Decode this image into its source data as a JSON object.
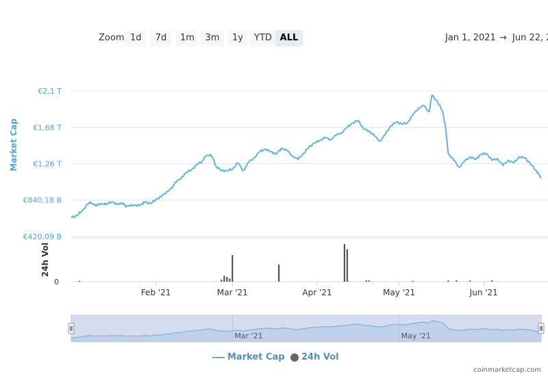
{
  "zoom": {
    "label": "Zoom",
    "buttons": [
      "1d",
      "7d",
      "1m",
      "3m",
      "1y",
      "YTD",
      "ALL"
    ],
    "active": "ALL"
  },
  "date_range": {
    "from": "Jan 1, 2021",
    "arrow": "→",
    "to": "Jun 22, 2"
  },
  "legend": {
    "market_cap": "Market Cap",
    "vol": "24h Vol"
  },
  "credit": "coinmarketcap.com",
  "colors": {
    "market_cap": "#5eb4e6",
    "volume": "#434348",
    "axis_label": "#4aa8de",
    "navigator_fill": "#ccd6eb"
  },
  "chart_data": [
    {
      "type": "line",
      "title": "",
      "ylabel": "Market Cap",
      "y_tick_labels": [
        "€420,09 B",
        "€840,18 B",
        "€1,26 T",
        "€1,68 T",
        "€2,1 T"
      ],
      "y_tick_values": [
        420.09,
        840.18,
        1260,
        1680,
        2100
      ],
      "ylim": [
        420.09,
        2310
      ],
      "x_tick_labels": [
        "Feb '21",
        "Mar '21",
        "Apr '21",
        "May '21",
        "Jun '21"
      ],
      "x_tick_dates": [
        "2021-02-01",
        "2021-03-01",
        "2021-04-01",
        "2021-05-01",
        "2021-06-01"
      ],
      "xlim": [
        "2021-01-01",
        "2021-06-22"
      ],
      "grid": true,
      "series": [
        {
          "name": "Market Cap",
          "unit": "€ billions",
          "x": [
            "2021-01-01",
            "2021-01-03",
            "2021-01-05",
            "2021-01-07",
            "2021-01-08",
            "2021-01-10",
            "2021-01-11",
            "2021-01-13",
            "2021-01-14",
            "2021-01-16",
            "2021-01-18",
            "2021-01-20",
            "2021-01-21",
            "2021-01-23",
            "2021-01-25",
            "2021-01-27",
            "2021-01-28",
            "2021-01-30",
            "2021-02-01",
            "2021-02-03",
            "2021-02-05",
            "2021-02-07",
            "2021-02-08",
            "2021-02-10",
            "2021-02-12",
            "2021-02-14",
            "2021-02-16",
            "2021-02-18",
            "2021-02-19",
            "2021-02-21",
            "2021-02-22",
            "2021-02-23",
            "2021-02-25",
            "2021-02-27",
            "2021-03-01",
            "2021-03-03",
            "2021-03-05",
            "2021-03-07",
            "2021-03-09",
            "2021-03-11",
            "2021-03-13",
            "2021-03-15",
            "2021-03-17",
            "2021-03-19",
            "2021-03-21",
            "2021-03-23",
            "2021-03-25",
            "2021-03-27",
            "2021-03-29",
            "2021-03-31",
            "2021-04-02",
            "2021-04-04",
            "2021-04-06",
            "2021-04-08",
            "2021-04-10",
            "2021-04-12",
            "2021-04-14",
            "2021-04-16",
            "2021-04-18",
            "2021-04-20",
            "2021-04-22",
            "2021-04-24",
            "2021-04-26",
            "2021-04-28",
            "2021-04-30",
            "2021-05-02",
            "2021-05-04",
            "2021-05-06",
            "2021-05-08",
            "2021-05-10",
            "2021-05-12",
            "2021-05-13",
            "2021-05-15",
            "2021-05-17",
            "2021-05-18",
            "2021-05-19",
            "2021-05-21",
            "2021-05-23",
            "2021-05-25",
            "2021-05-27",
            "2021-05-29",
            "2021-05-31",
            "2021-06-02",
            "2021-06-04",
            "2021-06-06",
            "2021-06-08",
            "2021-06-10",
            "2021-06-12",
            "2021-06-14",
            "2021-06-16",
            "2021-06-18",
            "2021-06-20",
            "2021-06-21",
            "2021-06-22"
          ],
          "values": [
            640,
            660,
            720,
            790,
            820,
            770,
            800,
            790,
            800,
            820,
            790,
            810,
            760,
            790,
            770,
            800,
            820,
            800,
            850,
            880,
            940,
            980,
            1050,
            1080,
            1160,
            1190,
            1250,
            1290,
            1340,
            1370,
            1310,
            1230,
            1180,
            1180,
            1200,
            1270,
            1180,
            1280,
            1330,
            1400,
            1430,
            1400,
            1370,
            1440,
            1410,
            1350,
            1310,
            1380,
            1450,
            1500,
            1530,
            1560,
            1540,
            1590,
            1620,
            1680,
            1730,
            1760,
            1660,
            1640,
            1580,
            1520,
            1600,
            1700,
            1740,
            1720,
            1730,
            1820,
            1900,
            1930,
            1860,
            2050,
            1980,
            1860,
            1680,
            1380,
            1300,
            1220,
            1290,
            1340,
            1310,
            1370,
            1380,
            1300,
            1320,
            1240,
            1300,
            1270,
            1340,
            1330,
            1260,
            1190,
            1140,
            1100
          ]
        }
      ]
    },
    {
      "type": "bar",
      "title": "",
      "ylabel": "24h Vol",
      "y_tick_labels": [
        "0"
      ],
      "note": "volume axis: bar heights as fraction of panel maximum",
      "series": [
        {
          "name": "24h Vol",
          "x": [
            "2021-01-04",
            "2021-02-25",
            "2021-02-26",
            "2021-02-27",
            "2021-02-28",
            "2021-03-01",
            "2021-03-18",
            "2021-04-11",
            "2021-04-12",
            "2021-04-19",
            "2021-04-20",
            "2021-05-06",
            "2021-05-19",
            "2021-05-22",
            "2021-05-27",
            "2021-06-04"
          ],
          "values": [
            0.02,
            0.05,
            0.15,
            0.12,
            0.08,
            0.67,
            0.43,
            0.95,
            0.82,
            0.03,
            0.03,
            0.02,
            0.03,
            0.03,
            0.03,
            0.03
          ]
        }
      ]
    }
  ],
  "navigator": {
    "labels": [
      "Mar '21",
      "May '21"
    ]
  }
}
